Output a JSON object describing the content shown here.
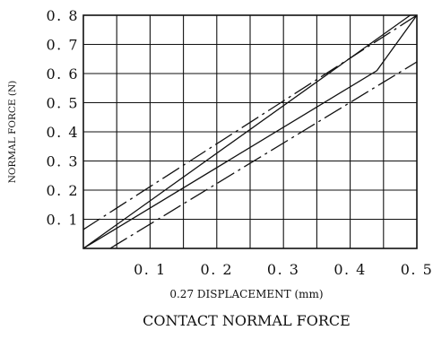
{
  "chart_data": {
    "type": "line",
    "title": "CONTACT NORMAL FORCE",
    "xlabel": "0.27 DISPLACEMENT (mm)",
    "ylabel": "NORMAL FORCE (N)",
    "xlim": [
      0,
      0.5
    ],
    "ylim": [
      0,
      0.8
    ],
    "x_ticks": [
      "0.1",
      "0.2",
      "0.3",
      "0.4",
      "0.5"
    ],
    "y_ticks": [
      "0.1",
      "0.2",
      "0.3",
      "0.4",
      "0.5",
      "0.6",
      "0.7",
      "0.8"
    ],
    "grid": true,
    "legend": "none",
    "series": [
      {
        "style": "dash-dot",
        "points": [
          [
            0.0,
            0.065
          ],
          [
            0.5,
            0.8
          ]
        ]
      },
      {
        "style": "solid",
        "points": [
          [
            0.0,
            0.0
          ],
          [
            0.49,
            0.8
          ]
        ]
      },
      {
        "style": "solid",
        "points": [
          [
            0.0,
            0.0
          ],
          [
            0.44,
            0.61
          ],
          [
            0.5,
            0.8
          ]
        ]
      },
      {
        "style": "dash-dot",
        "points": [
          [
            0.04,
            0.0
          ],
          [
            0.5,
            0.64
          ]
        ]
      }
    ]
  },
  "colors": {
    "line": "#111111",
    "grid": "#111111",
    "background": "#ffffff"
  }
}
